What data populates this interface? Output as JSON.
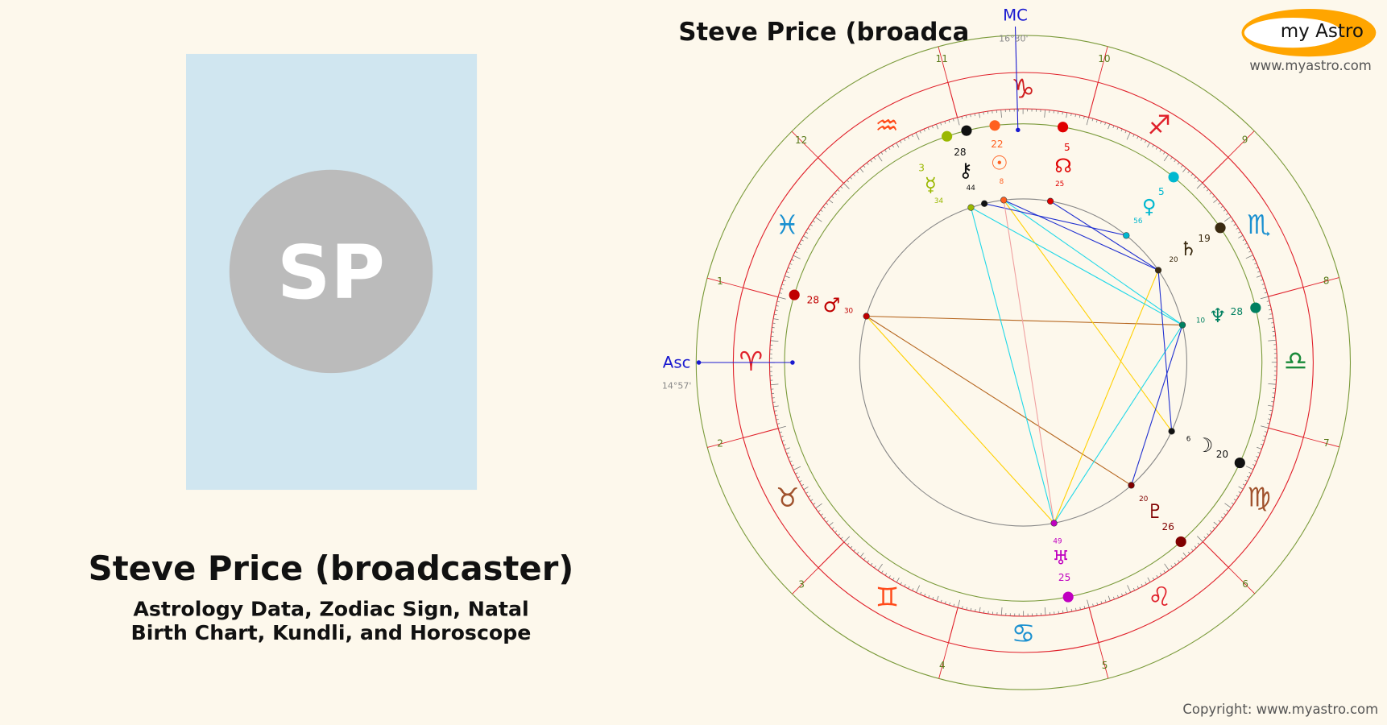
{
  "profile": {
    "initials": "SP",
    "name": "Steve Price (broadcaster)",
    "subtitle": [
      "Astrology Data, Zodiac Sign, Natal",
      "Birth Chart, Kundli, and Horoscope"
    ]
  },
  "logo": {
    "text": "my Astro",
    "url": "www.myastro.com"
  },
  "chart": {
    "title": "Steve Price (broadca",
    "mc": {
      "label": "MC",
      "degree": "16°30'"
    },
    "asc": {
      "label": "Asc",
      "degree": "14°57'"
    },
    "signs": [
      "♈",
      "♉",
      "♊",
      "♋",
      "♌",
      "♍",
      "♎",
      "♏",
      "♐",
      "♑",
      "♒",
      "♓"
    ],
    "houses": [
      "1",
      "2",
      "3",
      "4",
      "5",
      "6",
      "7",
      "8",
      "9",
      "10",
      "11",
      "12"
    ],
    "planets": [
      {
        "glyph": "☉",
        "degree": "22",
        "minute": "8"
      },
      {
        "glyph": "⚷",
        "degree": "28",
        "minute": "44"
      },
      {
        "glyph": "☿",
        "degree": "3",
        "minute": "34"
      },
      {
        "glyph": "☊",
        "degree": "5",
        "minute": "25"
      },
      {
        "glyph": "♀",
        "degree": "5",
        "minute": "56"
      },
      {
        "glyph": "♄",
        "degree": "19",
        "minute": "20"
      },
      {
        "glyph": "♆",
        "degree": "28",
        "minute": "10"
      },
      {
        "glyph": "☽",
        "degree": "20",
        "minute": "6"
      },
      {
        "glyph": "♇",
        "degree": "26",
        "minute": "20"
      },
      {
        "glyph": "♅",
        "degree": "25",
        "minute": "49"
      },
      {
        "glyph": "♂",
        "degree": "28",
        "minute": "30"
      }
    ]
  },
  "copyright": "Copyright: www.myastro.com"
}
